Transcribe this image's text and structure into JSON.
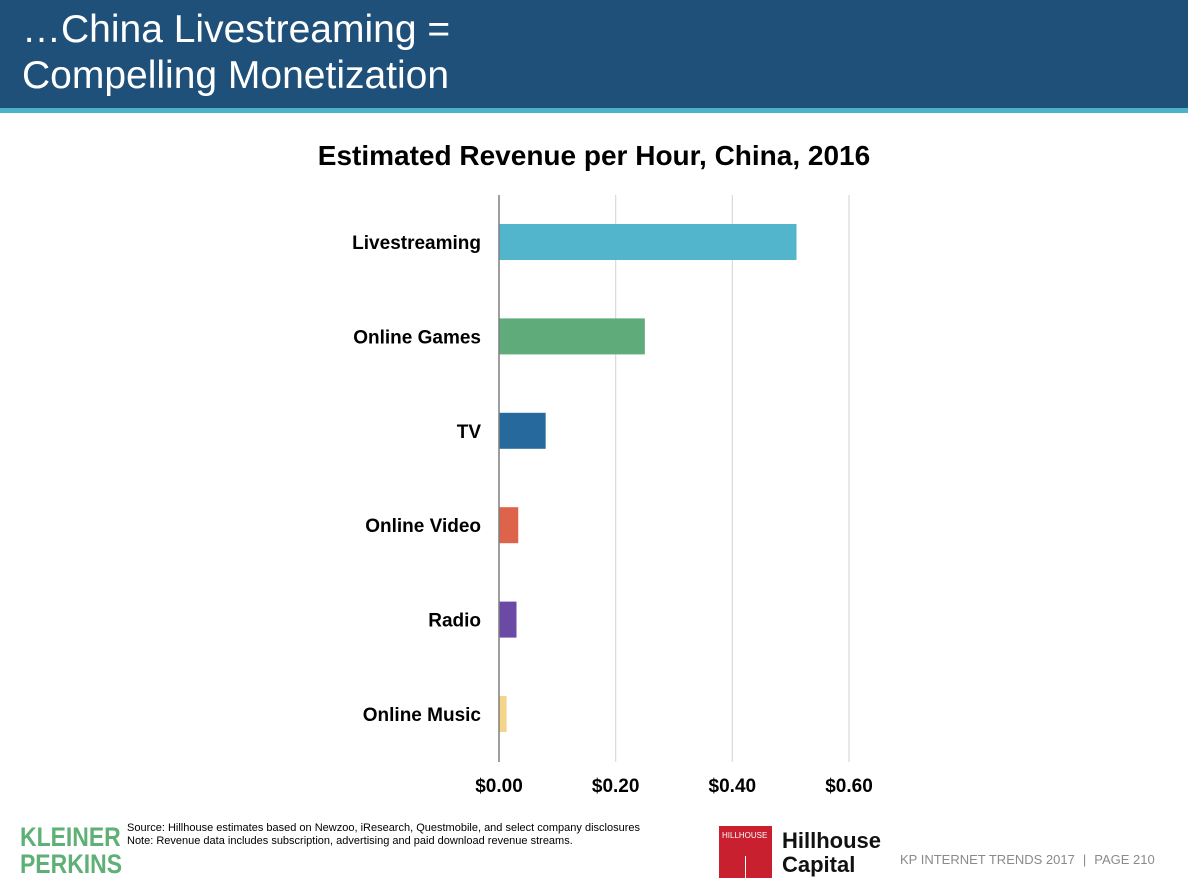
{
  "slide": {
    "title_lines": [
      "…China Livestreaming =",
      "Compelling Monetization"
    ]
  },
  "chart_data": {
    "type": "bar",
    "orientation": "horizontal",
    "title": "Estimated Revenue per Hour, China, 2016",
    "categories": [
      "Livestreaming",
      "Online Games",
      "TV",
      "Online Video",
      "Radio",
      "Online Music"
    ],
    "values": [
      0.51,
      0.25,
      0.08,
      0.033,
      0.03,
      0.013
    ],
    "colors": [
      "#52b5cc",
      "#5fab79",
      "#266a9d",
      "#dd634a",
      "#6b4aa5",
      "#f4d489"
    ],
    "xlim": [
      0,
      0.6
    ],
    "x_ticks": [
      "$0.00",
      "$0.20",
      "$0.40",
      "$0.60"
    ],
    "x_tick_values": [
      0,
      0.2,
      0.4,
      0.6
    ],
    "xlabel": "",
    "ylabel": "",
    "grid": true,
    "legend": "none"
  },
  "notes": {
    "source": "Source: Hillhouse estimates based on Newzoo, iResearch, Questmobile, and select company disclosures",
    "note": "Note: Revenue data includes subscription, advertising and paid download revenue streams."
  },
  "logos": {
    "kleiner_line1": "KLEINER",
    "kleiner_line2": "PERKINS",
    "hillhouse_mark": "HILLHOUSE",
    "hillhouse_line1": "Hillhouse",
    "hillhouse_line2": "Capital"
  },
  "footer": {
    "report": "KP INTERNET TRENDS 2017",
    "separator": "|",
    "page": "PAGE 210"
  },
  "colors": {
    "header_bg": "#1f5079",
    "header_rule": "#4ab3c9",
    "kp_green": "#5fb076",
    "hillhouse_red": "#c8202f"
  }
}
